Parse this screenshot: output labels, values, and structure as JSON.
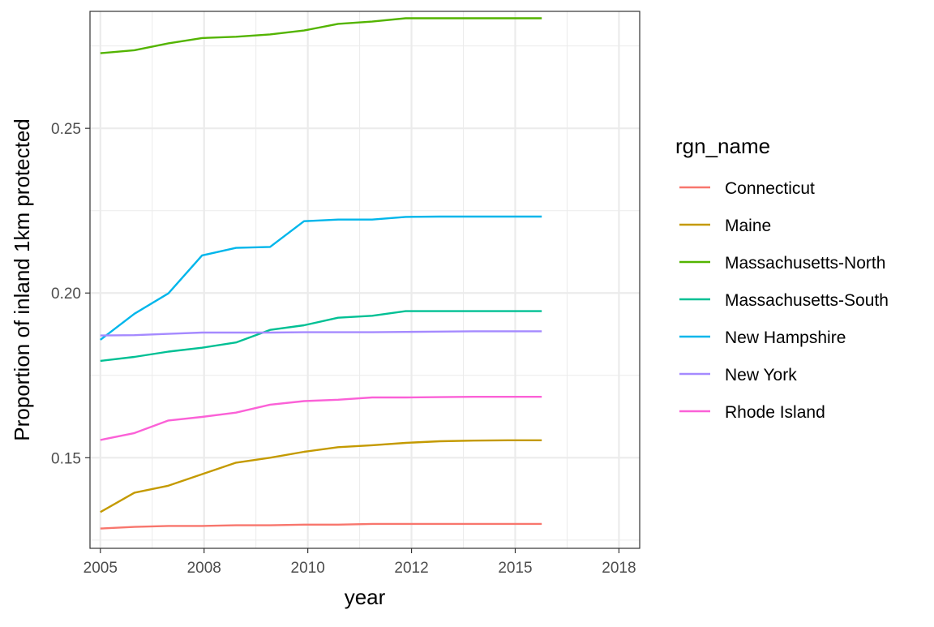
{
  "chart_data": {
    "type": "line",
    "xlabel": "year",
    "ylabel": "Proportion of inland 1km protected",
    "x_ticks": [
      "2005",
      "2008",
      "2010",
      "2012",
      "2015",
      "2018"
    ],
    "y_ticks": [
      "0.15",
      "0.20",
      "0.25"
    ],
    "xlim": [
      2004.75,
      2018.0
    ],
    "ylim": [
      0.1225,
      0.2855
    ],
    "legend": {
      "title": "rgn_name",
      "position": "right"
    },
    "grid": true,
    "x": [
      2005.0,
      2005.82,
      2006.64,
      2007.45,
      2008.27,
      2009.09,
      2009.91,
      2010.73,
      2011.55,
      2012.36,
      2013.18,
      2014.0,
      2014.82,
      2015.64
    ],
    "series": [
      {
        "name": "Connecticut",
        "color": "#F8766D",
        "values": [
          0.1285,
          0.129,
          0.1293,
          0.1293,
          0.1295,
          0.1295,
          0.1297,
          0.1297,
          0.1299,
          0.1299,
          0.1299,
          0.1299,
          0.1299,
          0.1299
        ]
      },
      {
        "name": "Maine",
        "color": "#C49A00",
        "values": [
          0.1335,
          0.1394,
          0.1415,
          0.145,
          0.1485,
          0.15,
          0.1518,
          0.1532,
          0.1538,
          0.1545,
          0.155,
          0.1552,
          0.1553,
          0.1553
        ]
      },
      {
        "name": "Massachusetts-North",
        "color": "#53B400",
        "values": [
          0.2728,
          0.2737,
          0.2758,
          0.2774,
          0.2778,
          0.2785,
          0.2797,
          0.2817,
          0.2824,
          0.2834,
          0.2834,
          0.2834,
          0.2834,
          0.2834
        ]
      },
      {
        "name": "Massachusetts-South",
        "color": "#00C094",
        "values": [
          0.1794,
          0.1806,
          0.1822,
          0.1834,
          0.185,
          0.1888,
          0.1902,
          0.1925,
          0.1931,
          0.1945,
          0.1945,
          0.1945,
          0.1945,
          0.1945
        ]
      },
      {
        "name": "New Hampshire",
        "color": "#00B6EB",
        "values": [
          0.1858,
          0.1937,
          0.1999,
          0.2114,
          0.2137,
          0.214,
          0.2218,
          0.2223,
          0.2223,
          0.2231,
          0.2232,
          0.2232,
          0.2232,
          0.2232
        ]
      },
      {
        "name": "New York",
        "color": "#A58AFF",
        "values": [
          0.1871,
          0.1872,
          0.1876,
          0.188,
          0.188,
          0.188,
          0.1881,
          0.1881,
          0.1881,
          0.1882,
          0.1883,
          0.1884,
          0.1884,
          0.1884
        ]
      },
      {
        "name": "Rhode Island",
        "color": "#FB61D7",
        "values": [
          0.1554,
          0.1575,
          0.1613,
          0.1624,
          0.1637,
          0.1661,
          0.1672,
          0.1676,
          0.1683,
          0.1683,
          0.1684,
          0.1685,
          0.1685,
          0.1685
        ]
      }
    ]
  }
}
